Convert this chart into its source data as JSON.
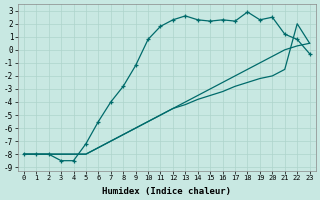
{
  "xlabel": "Humidex (Indice chaleur)",
  "bg_color": "#c8e8e2",
  "line_color": "#006b6b",
  "grid_color": "#aed4cc",
  "xlim": [
    -0.5,
    23.5
  ],
  "ylim": [
    -9.3,
    3.5
  ],
  "xticks": [
    0,
    1,
    2,
    3,
    4,
    5,
    6,
    7,
    8,
    9,
    10,
    11,
    12,
    13,
    14,
    15,
    16,
    17,
    18,
    19,
    20,
    21,
    22,
    23
  ],
  "yticks": [
    3,
    2,
    1,
    0,
    -1,
    -2,
    -3,
    -4,
    -5,
    -6,
    -7,
    -8,
    -9
  ],
  "curve1_x": [
    0,
    1,
    2,
    3,
    4,
    5,
    6,
    7,
    8,
    9,
    10,
    11,
    12,
    13,
    14,
    15,
    16,
    17,
    18,
    19,
    20,
    21,
    22,
    23
  ],
  "curve1_y": [
    -8.0,
    -8.0,
    -8.0,
    -8.5,
    -8.5,
    -7.2,
    -5.5,
    -4.0,
    -2.8,
    -1.2,
    0.8,
    1.8,
    2.3,
    2.6,
    2.3,
    2.2,
    2.3,
    2.2,
    2.9,
    2.3,
    2.5,
    1.2,
    0.8,
    -0.3
  ],
  "curve2_x": [
    0,
    1,
    2,
    3,
    4,
    5,
    6,
    7,
    8,
    9,
    10,
    11,
    12,
    13,
    14,
    15,
    16,
    17,
    18,
    19,
    20,
    21,
    22,
    23
  ],
  "curve2_y": [
    -8.0,
    -8.0,
    -8.0,
    -8.0,
    -8.0,
    -8.0,
    -7.5,
    -7.0,
    -6.5,
    -6.0,
    -5.5,
    -5.0,
    -4.5,
    -4.0,
    -3.5,
    -3.0,
    -2.5,
    -2.0,
    -1.5,
    -1.0,
    -0.5,
    0.0,
    0.3,
    0.5
  ],
  "curve3_x": [
    0,
    4,
    5,
    6,
    7,
    8,
    9,
    10,
    11,
    12,
    13,
    14,
    15,
    16,
    17,
    18,
    19,
    20,
    21,
    22,
    23
  ],
  "curve3_y": [
    -8.0,
    -8.0,
    -8.0,
    -7.5,
    -7.0,
    -6.5,
    -6.0,
    -5.5,
    -5.0,
    -4.5,
    -4.2,
    -3.8,
    -3.5,
    -3.2,
    -2.8,
    -2.5,
    -2.2,
    -2.0,
    -1.5,
    2.0,
    0.5
  ]
}
